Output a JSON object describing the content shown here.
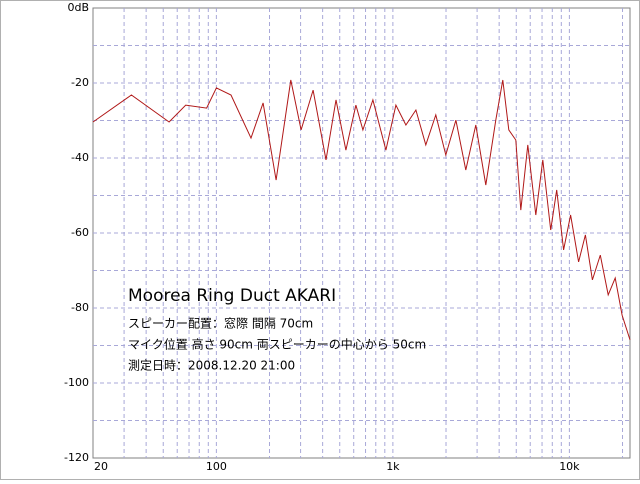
{
  "chart_data": {
    "type": "line",
    "annotations": {
      "title": "Moorea Ring Duct AKARI",
      "lines": [
        "スピーカー配置：窓際 間隔 70cm",
        "マイク位置 高さ 90cm 両スピーカーの中心から 50cm",
        "測定日時：2008.12.20 21:00"
      ]
    },
    "x": [
      20,
      33,
      54,
      67,
      88,
      100,
      121,
      157,
      184,
      218,
      264,
      302,
      353,
      418,
      476,
      542,
      617,
      676,
      771,
      913,
      1040,
      1185,
      1350,
      1537,
      1751,
      1995,
      2274,
      2590,
      2950,
      3361,
      3829,
      4194,
      4536,
      4968,
      5306,
      5813,
      6451,
      7066,
      7835,
      8472,
      9277,
      10160,
      11270,
      12330,
      13500,
      14970,
      16600,
      18170,
      19900,
      22050
    ],
    "values": [
      -30.4,
      -23.2,
      -30.4,
      -25.9,
      -26.7,
      -21.3,
      -23.2,
      -34.7,
      -25.3,
      -45.9,
      -19.2,
      -32.5,
      -21.9,
      -40.5,
      -24.5,
      -37.9,
      -25.9,
      -32.5,
      -24.5,
      -37.9,
      -25.9,
      -31.2,
      -27.2,
      -36.5,
      -28.5,
      -39.2,
      -29.9,
      -43.2,
      -31.2,
      -47.2,
      -29.9,
      -19.2,
      -32.5,
      -35.2,
      -53.9,
      -36.5,
      -55.2,
      -40.5,
      -59.2,
      -48.5,
      -64.5,
      -55.2,
      -67.7,
      -60.5,
      -72.5,
      -65.9,
      -76.5,
      -72.0,
      -81.9,
      -88.5
    ],
    "color": "#b01818",
    "xscale": "log",
    "xlim": [
      20,
      22050
    ],
    "xticks": [
      20,
      100,
      {
        "value": 1000,
        "label": "1k"
      },
      {
        "value": 10000,
        "label": "10k"
      }
    ],
    "xminor": [
      30,
      40,
      50,
      60,
      70,
      80,
      90,
      200,
      300,
      400,
      500,
      600,
      700,
      800,
      900,
      2000,
      3000,
      4000,
      5000,
      6000,
      7000,
      8000,
      9000,
      20000
    ],
    "ylim": [
      -120,
      0
    ],
    "yticks": [
      {
        "value": 0,
        "label": "0dB"
      },
      -20,
      -40,
      -60,
      -80,
      -100,
      -120
    ],
    "yminor": [
      -10,
      -30,
      -50,
      -70,
      -90,
      -110
    ],
    "grid": true
  }
}
